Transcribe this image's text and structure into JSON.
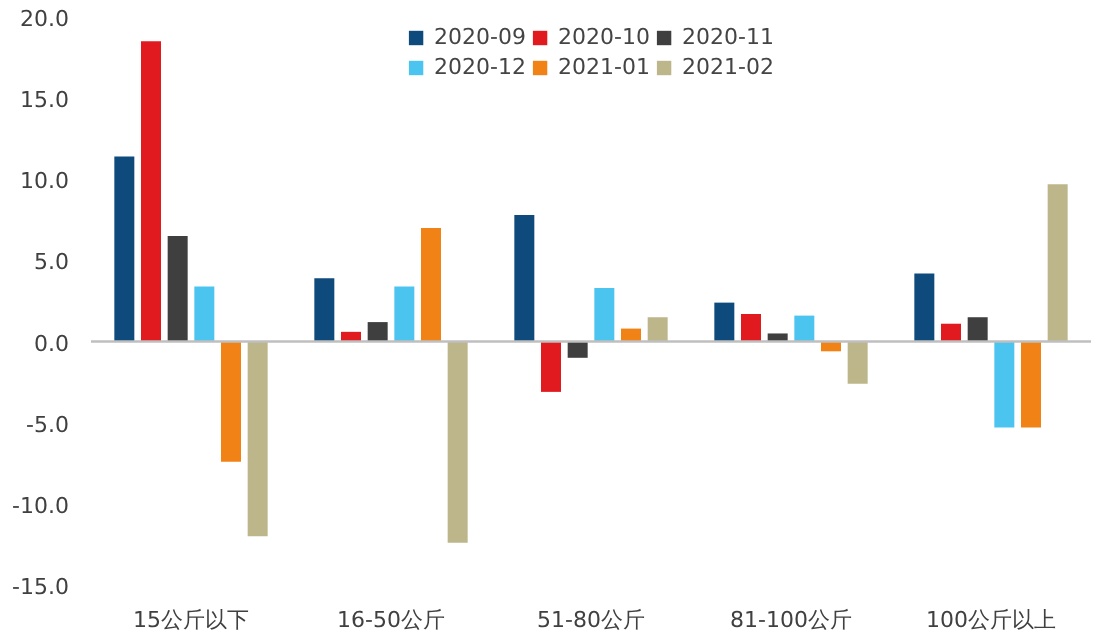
{
  "chart_data": {
    "type": "bar",
    "categories": [
      "15公斤以下",
      "16-50公斤",
      "51-80公斤",
      "81-100公斤",
      "100公斤以上"
    ],
    "series": [
      {
        "name": "2020-09",
        "color": "#0f4a7c",
        "values": [
          11.4,
          3.9,
          7.8,
          2.4,
          4.2
        ]
      },
      {
        "name": "2020-10",
        "color": "#e01a1f",
        "values": [
          18.5,
          0.6,
          -3.1,
          1.7,
          1.1
        ]
      },
      {
        "name": "2020-11",
        "color": "#3f3f3f",
        "values": [
          6.5,
          1.2,
          -1.0,
          0.5,
          1.5
        ]
      },
      {
        "name": "2020-12",
        "color": "#4cc4f0",
        "values": [
          3.4,
          3.4,
          3.3,
          1.6,
          -5.3
        ]
      },
      {
        "name": "2021-01",
        "color": "#f18216",
        "values": [
          -7.4,
          7.0,
          0.8,
          -0.6,
          -5.3
        ]
      },
      {
        "name": "2021-02",
        "color": "#bdb68b",
        "values": [
          -12.0,
          -12.4,
          1.5,
          -2.6,
          9.7
        ]
      }
    ],
    "ylim": [
      -15,
      20
    ],
    "yticks": [
      {
        "value": -15,
        "label": "-15.0"
      },
      {
        "value": -10,
        "label": "-10.0"
      },
      {
        "value": -5,
        "label": "-5.0"
      },
      {
        "value": 0,
        "label": "0.0"
      },
      {
        "value": 5,
        "label": "5.0"
      },
      {
        "value": 10,
        "label": "10.0"
      },
      {
        "value": 15,
        "label": "15.0"
      },
      {
        "value": 20,
        "label": "20.0"
      }
    ],
    "grid": false,
    "ref_lines": [
      {
        "axis": "y",
        "value": 0,
        "color": "#bfbfbf"
      }
    ],
    "legend": "top"
  }
}
